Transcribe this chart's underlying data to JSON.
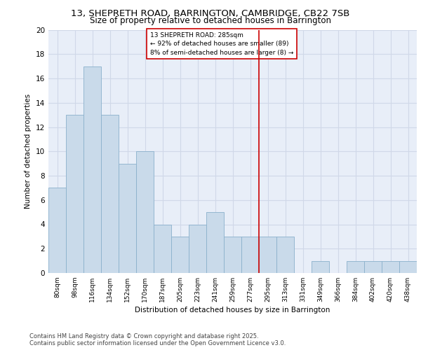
{
  "title_line1": "13, SHEPRETH ROAD, BARRINGTON, CAMBRIDGE, CB22 7SB",
  "title_line2": "Size of property relative to detached houses in Barrington",
  "xlabel": "Distribution of detached houses by size in Barrington",
  "ylabel": "Number of detached properties",
  "categories": [
    "80sqm",
    "98sqm",
    "116sqm",
    "134sqm",
    "152sqm",
    "170sqm",
    "187sqm",
    "205sqm",
    "223sqm",
    "241sqm",
    "259sqm",
    "277sqm",
    "295sqm",
    "313sqm",
    "331sqm",
    "349sqm",
    "366sqm",
    "384sqm",
    "402sqm",
    "420sqm",
    "438sqm"
  ],
  "values": [
    7,
    13,
    17,
    13,
    9,
    10,
    4,
    3,
    4,
    5,
    3,
    3,
    3,
    3,
    0,
    1,
    0,
    1,
    1,
    1,
    1
  ],
  "bar_color": "#c9daea",
  "bar_edge_color": "#8ab0cc",
  "grid_color": "#d0d8e8",
  "bg_color": "#e8eef8",
  "red_line_index": 11.5,
  "annotation_title": "13 SHEPRETH ROAD: 285sqm",
  "annotation_line2": "← 92% of detached houses are smaller (89)",
  "annotation_line3": "8% of semi-detached houses are larger (8) →",
  "annotation_box_color": "#cc0000",
  "ylim": [
    0,
    20
  ],
  "yticks": [
    0,
    2,
    4,
    6,
    8,
    10,
    12,
    14,
    16,
    18,
    20
  ],
  "footer_line1": "Contains HM Land Registry data © Crown copyright and database right 2025.",
  "footer_line2": "Contains public sector information licensed under the Open Government Licence v3.0."
}
